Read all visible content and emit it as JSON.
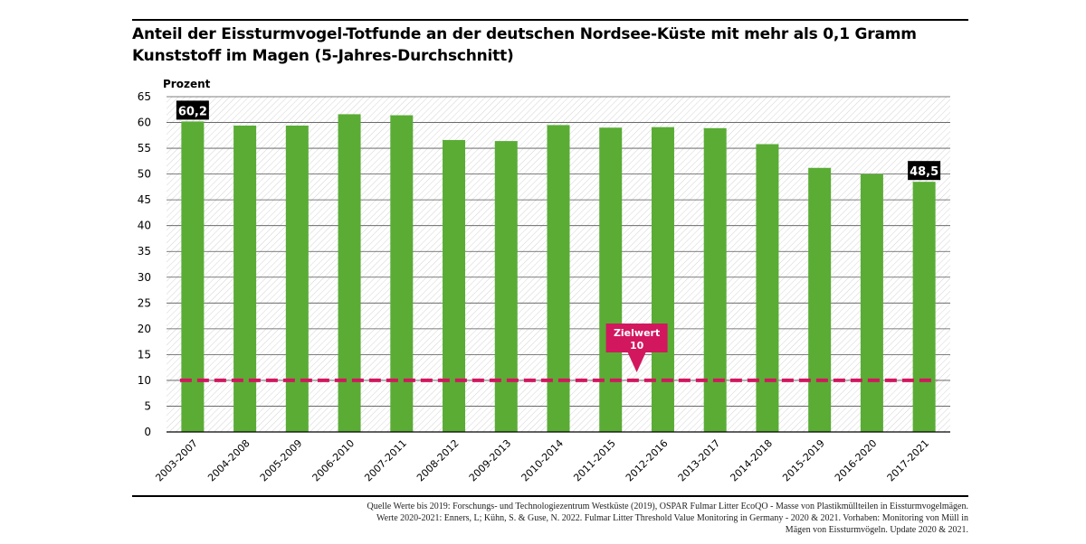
{
  "title": "Anteil der Eissturmvogel-Totfunde an der deutschen Nordsee-Küste mit mehr als 0,1 Gramm Kunststoff im Magen (5-Jahres-Durchschnitt)",
  "chart_data": {
    "type": "bar",
    "ylabel": "Prozent",
    "xlabel": "",
    "ylim": [
      0,
      65
    ],
    "yticks": [
      "0",
      "5",
      "10",
      "15",
      "20",
      "25",
      "30",
      "35",
      "40",
      "45",
      "50",
      "55",
      "60",
      "65"
    ],
    "grid": true,
    "categories": [
      "2003-2007",
      "2004-2008",
      "2005-2009",
      "2006-2010",
      "2007-2011",
      "2008-2012",
      "2009-2013",
      "2010-2014",
      "2011-2015",
      "2012-2016",
      "2013-2017",
      "2014-2018",
      "2015-2019",
      "2016-2020",
      "2017-2021"
    ],
    "values": [
      60.2,
      59.4,
      59.4,
      61.6,
      61.4,
      56.6,
      56.4,
      59.5,
      59.0,
      59.1,
      58.9,
      55.8,
      51.2,
      50.0,
      48.5
    ],
    "data_labels": [
      {
        "index": 0,
        "text": "60,2"
      },
      {
        "index": 14,
        "text": "48,5"
      }
    ],
    "target": {
      "value": 10,
      "label_line1": "Zielwert",
      "label_line2": "10"
    },
    "colors": {
      "bar": "#5aac35",
      "target": "#d2175f",
      "label_bg": "#000000"
    }
  },
  "source": {
    "line1": "Quelle Werte bis 2019: Forschungs- und Technologiezentrum Westküste (2019), OSPAR Fulmar Litter EcoQO - Masse von Plastikmüllteilen in Eissturmvogelmägen.",
    "line2": "Werte 2020-2021: Enners, L; Kühn, S. & Guse, N. 2022. Fulmar Litter Threshold Value Monitoring in Germany - 2020 & 2021. Vorhaben: Monitoring von Müll in",
    "line3": "Mägen von Eissturmvögeln. Update 2020 & 2021."
  }
}
